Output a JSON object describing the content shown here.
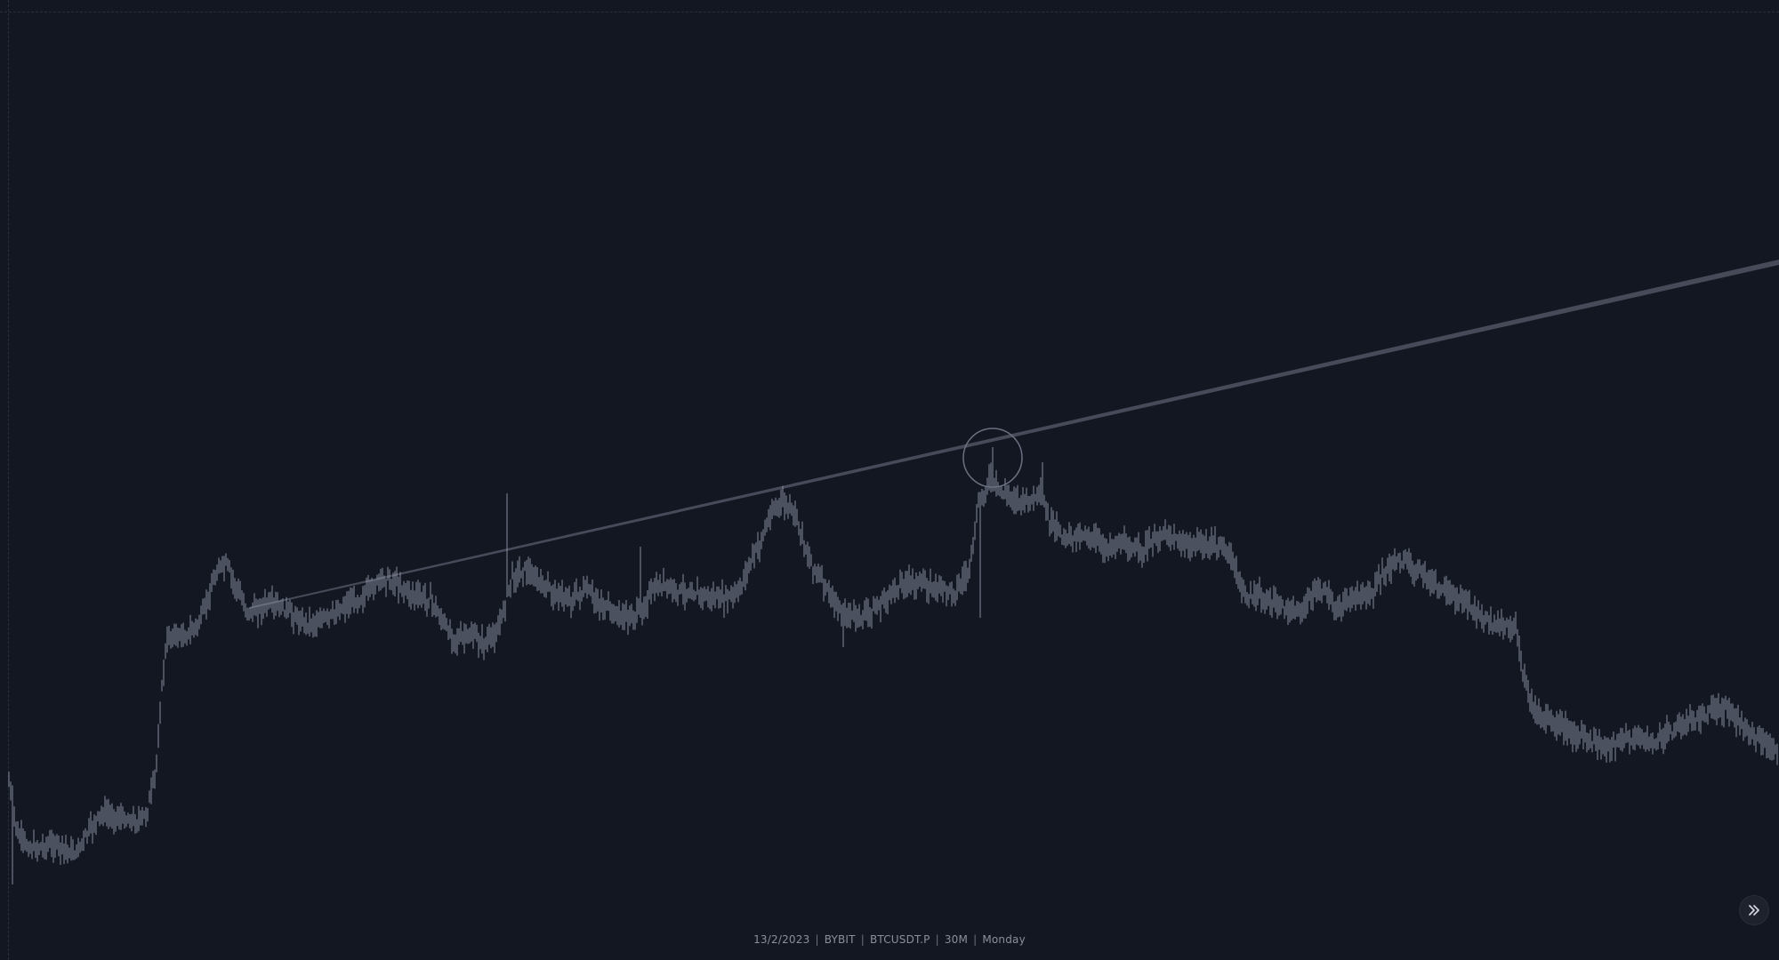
{
  "footer": {
    "date": "13/2/2023",
    "exchange": "BYBIT",
    "symbol": "BTCUSDT.P",
    "timeframe": "30M",
    "weekday": "Monday"
  },
  "chart": {
    "candle_color": "#9aa0b4",
    "trendline_color": "#4a4e5d",
    "background": "#131722"
  },
  "icons": {
    "scroll_button_icon": "double-chevron-right-icon"
  }
}
